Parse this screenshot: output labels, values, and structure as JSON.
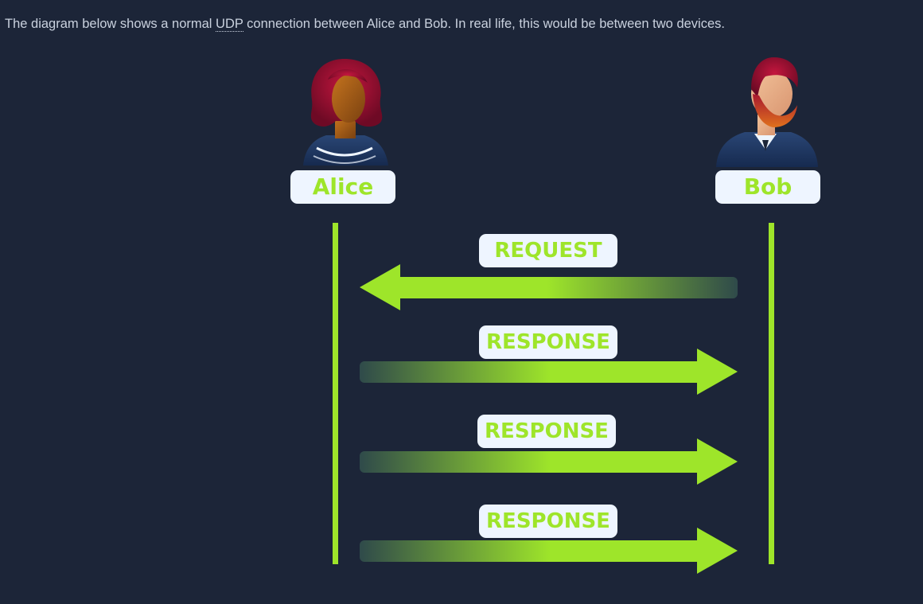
{
  "intro": {
    "before": "The diagram below shows a normal ",
    "abbr": "UDP",
    "after": " connection between Alice and Bob. In real life, this would be between two devices."
  },
  "participants": {
    "alice": {
      "name": "Alice",
      "icon": "woman-avatar-icon"
    },
    "bob": {
      "name": "Bob",
      "icon": "bearded-man-avatar-icon"
    }
  },
  "messages": [
    {
      "label": "REQUEST",
      "direction": "bob-to-alice"
    },
    {
      "label": "RESPONSE",
      "direction": "alice-to-bob"
    },
    {
      "label": "RESPONSE",
      "direction": "alice-to-bob"
    },
    {
      "label": "RESPONSE",
      "direction": "alice-to-bob"
    }
  ],
  "colors": {
    "background": "#1c2538",
    "accent": "#9ee52a",
    "label_bg": "#eef5ff",
    "text": "#c9d1de"
  }
}
